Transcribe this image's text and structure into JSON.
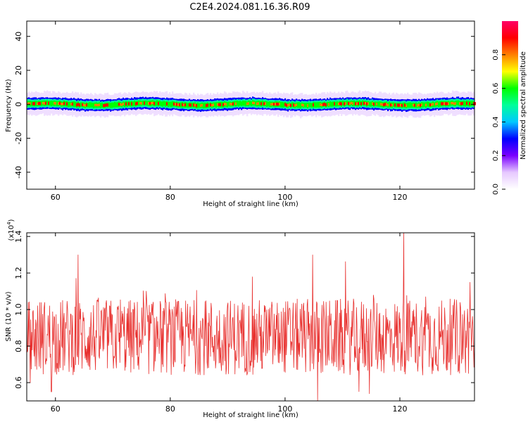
{
  "title": "C2E4.2024.081.16.36.R09",
  "chart_data": [
    {
      "type": "heatmap",
      "name": "spectrogram",
      "xlabel": "Height of straight line (km)",
      "ylabel": "Frequency (Hz)",
      "xlim": [
        55,
        133
      ],
      "ylim": [
        -50,
        49
      ],
      "xticks": [
        60,
        80,
        100,
        120
      ],
      "xtick_labels": [
        "60",
        "80",
        "100",
        "120"
      ],
      "yticks": [
        40,
        20,
        0,
        -20,
        -40
      ],
      "ytick_labels": [
        "40",
        "20",
        "0",
        "-20",
        "-40"
      ],
      "band_center_hz": 0,
      "band_halfwidth_hz": 3,
      "colorbar": {
        "label": "Normalized spectral amplitude",
        "range": [
          0,
          1
        ],
        "ticks": [
          0.0,
          0.2,
          0.4,
          0.6,
          0.8
        ],
        "tick_labels": [
          "0.0",
          "0.2",
          "0.4",
          "0.6",
          "0.8"
        ],
        "colors": [
          "#ffffff",
          "#e6c8ff",
          "#7a00ff",
          "#0000ff",
          "#00c8ff",
          "#00ff9a",
          "#00ff00",
          "#ffff00",
          "#ff8000",
          "#ff0000",
          "#ff0066"
        ]
      }
    },
    {
      "type": "line",
      "name": "snr",
      "xlabel": "Height of straight line (km)",
      "ylabel": "SNR (10 * v/v)",
      "yscale_label_base": "(x10",
      "yscale_label_exp": "4",
      "yscale_label_close": ")",
      "xlim": [
        55,
        133
      ],
      "ylim": [
        0.5,
        1.42
      ],
      "xticks": [
        60,
        80,
        100,
        120
      ],
      "xtick_labels": [
        "60",
        "80",
        "100",
        "120"
      ],
      "yticks": [
        0.6,
        0.8,
        1.0,
        1.2,
        1.4
      ],
      "ytick_labels": [
        "0.6",
        "0.8",
        "1.0",
        "1.2",
        "1.4"
      ],
      "line_color": "#e8302e",
      "series_description": "noisy fluctuating SNR around 0.85",
      "mean": 0.85,
      "peaks": [
        {
          "x": 63.9,
          "y": 1.3
        },
        {
          "x": 104.8,
          "y": 1.3
        },
        {
          "x": 120.7,
          "y": 1.42
        },
        {
          "x": 132.2,
          "y": 1.15
        }
      ],
      "troughs": [
        {
          "x": 105.7,
          "y": 0.5
        },
        {
          "x": 59.3,
          "y": 0.55
        },
        {
          "x": 112.9,
          "y": 0.55
        }
      ]
    }
  ]
}
